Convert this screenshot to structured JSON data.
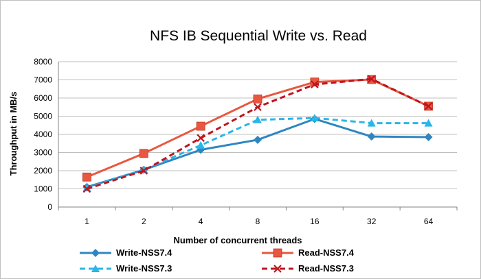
{
  "chart_data": {
    "type": "line",
    "title": "NFS IB Sequential Write vs. Read",
    "xlabel": "Number of concurrent threads",
    "ylabel": "Throughput in MB/s",
    "categories": [
      "1",
      "2",
      "4",
      "8",
      "16",
      "32",
      "64"
    ],
    "ylim": [
      0,
      8000
    ],
    "yticks": [
      0,
      1000,
      2000,
      3000,
      4000,
      5000,
      6000,
      7000,
      8000
    ],
    "grid": true,
    "legend_position": "bottom",
    "series": [
      {
        "name": "Write-NSS7.4",
        "color": "#2e86c1",
        "dash": "solid",
        "marker": "diamond",
        "values": [
          1100,
          2050,
          3150,
          3700,
          4850,
          3880,
          3850
        ]
      },
      {
        "name": "Read-NSS7.4",
        "color": "#e8573f",
        "dash": "solid",
        "marker": "square",
        "values": [
          1650,
          2950,
          4450,
          5950,
          6880,
          7020,
          5550
        ]
      },
      {
        "name": "Write-NSS7.3",
        "color": "#29b6e8",
        "dash": "dashed",
        "marker": "triangle",
        "values": [
          1050,
          2050,
          3400,
          4800,
          4900,
          4620,
          4620
        ]
      },
      {
        "name": "Read-NSS7.3",
        "color": "#c0141e",
        "dash": "dashed",
        "marker": "x",
        "values": [
          1000,
          2000,
          3800,
          5500,
          6750,
          7050,
          5550
        ]
      }
    ]
  }
}
